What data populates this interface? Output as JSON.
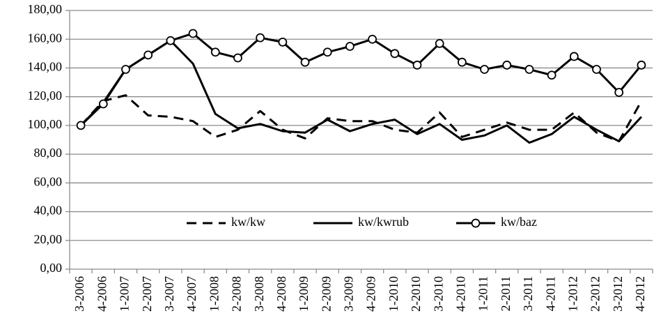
{
  "chart_data": {
    "type": "line",
    "categories": [
      "3-2006",
      "4-2006",
      "1-2007",
      "2-2007",
      "3-2007",
      "4-2007",
      "1-2008",
      "2-2008",
      "3-2008",
      "4-2008",
      "1-2009",
      "2-2009",
      "3-2009",
      "4-2009",
      "1-2010",
      "2-2010",
      "3-2010",
      "4-2010",
      "1-2011",
      "2-2011",
      "3-2011",
      "4-2011",
      "1-2012",
      "2-2012",
      "3-2012",
      "4-2012"
    ],
    "series": [
      {
        "name": "kw/kw",
        "color": "#000000",
        "style": "dashed",
        "values": [
          100,
          117,
          121,
          107,
          106,
          103,
          92,
          97,
          110,
          97,
          91,
          105,
          103,
          103,
          97,
          95,
          109,
          92,
          97,
          102,
          97,
          97,
          109,
          95,
          89,
          117
        ]
      },
      {
        "name": "kw/kwrub",
        "color": "#000000",
        "style": "solid",
        "values": [
          100,
          116,
          139,
          149,
          159,
          143,
          108,
          98,
          101,
          96,
          95,
          104,
          96,
          101,
          104,
          94,
          101,
          90,
          93,
          100,
          88,
          94,
          106,
          97,
          89,
          106
        ]
      },
      {
        "name": "kw/baz",
        "color": "#000000",
        "style": "solid",
        "marker": "circle",
        "values": [
          100,
          115,
          139,
          149,
          159,
          164,
          151,
          147,
          161,
          158,
          144,
          151,
          155,
          160,
          150,
          142,
          157,
          144,
          139,
          142,
          139,
          135,
          148,
          139,
          123,
          142
        ]
      }
    ],
    "ylim": [
      0,
      180
    ],
    "yticks": [
      {
        "value": 0,
        "label": "0,00"
      },
      {
        "value": 20,
        "label": "20,00"
      },
      {
        "value": 40,
        "label": "40,00"
      },
      {
        "value": 60,
        "label": "60,00"
      },
      {
        "value": 80,
        "label": "80,00"
      },
      {
        "value": 100,
        "label": "100,00"
      },
      {
        "value": 120,
        "label": "120,00"
      },
      {
        "value": 140,
        "label": "140,00"
      },
      {
        "value": 160,
        "label": "160,00"
      },
      {
        "value": 180,
        "label": "180,00"
      }
    ],
    "grid": true,
    "legend": "lower center"
  }
}
